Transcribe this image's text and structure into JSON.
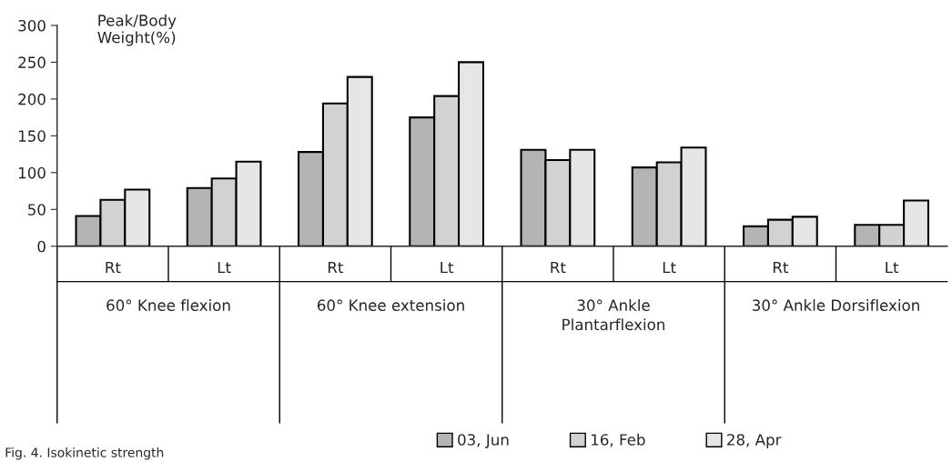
{
  "chart_data": {
    "type": "bar",
    "ylabel": "Peak/Body\nWeight(%)",
    "categories": [
      "Rt",
      "Lt",
      "Rt",
      "Lt",
      "Rt",
      "Lt",
      "Rt",
      "Lt"
    ],
    "series": [
      {
        "name": "03, Jun",
        "color": "#b4b4b4",
        "values": [
          41,
          79,
          128,
          175,
          131,
          107,
          27,
          29
        ]
      },
      {
        "name": "16, Feb",
        "color": "#d2d2d2",
        "values": [
          63,
          92,
          194,
          204,
          117,
          114,
          36,
          29
        ]
      },
      {
        "name": "28, Apr",
        "color": "#e6e6e6",
        "values": [
          77,
          115,
          230,
          250,
          131,
          134,
          40,
          62
        ]
      }
    ],
    "annotations": [
      "60° Knee flexion",
      "60° Knee extension",
      "30° Ankle\nPlantarflexion",
      "30° Ankle Dorsiflexion",
      "Fig. 4. Isokinetic strength"
    ],
    "ylim": [
      0,
      300
    ],
    "yticks": [
      0,
      50,
      100,
      150,
      200,
      250,
      300
    ],
    "grid": false,
    "legend": "bottom"
  }
}
